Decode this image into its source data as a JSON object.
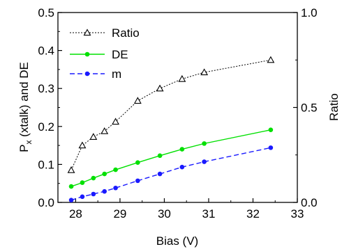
{
  "chart_data": {
    "type": "line",
    "xlabel": "Bias (V)",
    "ylabel_left": {
      "main": "P",
      "sub": "x",
      "rest": " (xtalk) and DE"
    },
    "ylabel_right": "Ratio",
    "xlim": [
      27.6,
      33
    ],
    "ylim_left": [
      0,
      0.5
    ],
    "ylim_right": [
      0,
      1.0
    ],
    "x_ticks": [
      28,
      29,
      30,
      31,
      32,
      33
    ],
    "x_tick_labels": [
      "28",
      "29",
      "30",
      "31",
      "32",
      "33"
    ],
    "y_left_ticks": [
      0.0,
      0.1,
      0.2,
      0.3,
      0.4,
      0.5
    ],
    "y_left_tick_labels": [
      "0.0",
      "0.1",
      "0.2",
      "0.3",
      "0.4",
      "0.5"
    ],
    "y_right_ticks": [
      0.0,
      0.5,
      1.0
    ],
    "y_right_tick_labels": [
      "0.0",
      "0.5",
      "1.0"
    ],
    "grid": false,
    "legend_position": "top-left",
    "x": [
      27.9,
      28.15,
      28.4,
      28.65,
      28.9,
      29.4,
      29.9,
      30.4,
      30.9,
      32.4
    ],
    "series": [
      {
        "name": "Ratio",
        "axis": "right",
        "marker": "open-triangle",
        "line": "dotted",
        "color": "#000000",
        "values": [
          0.17,
          0.3,
          0.345,
          0.375,
          0.425,
          0.535,
          0.6,
          0.65,
          0.685,
          0.75
        ]
      },
      {
        "name": "DE",
        "axis": "left",
        "marker": "filled-circle",
        "line": "solid",
        "color": "#00e000",
        "values": [
          0.042,
          0.052,
          0.064,
          0.075,
          0.086,
          0.105,
          0.123,
          0.14,
          0.155,
          0.191
        ]
      },
      {
        "name": "m",
        "axis": "left",
        "marker": "filled-circle",
        "line": "dashed",
        "color": "#1a1aff",
        "values": [
          0.006,
          0.015,
          0.022,
          0.029,
          0.038,
          0.057,
          0.075,
          0.093,
          0.107,
          0.144
        ]
      }
    ]
  }
}
